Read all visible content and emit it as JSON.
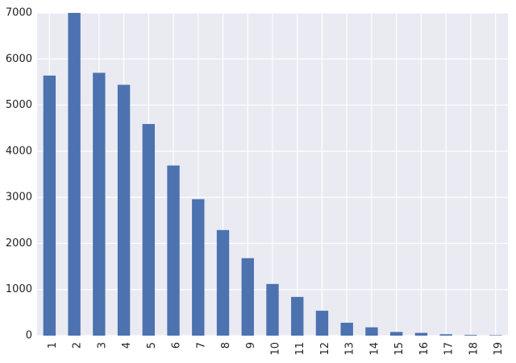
{
  "chart_data": {
    "type": "bar",
    "categories": [
      "1",
      "2",
      "3",
      "4",
      "5",
      "6",
      "7",
      "8",
      "9",
      "10",
      "11",
      "12",
      "13",
      "14",
      "15",
      "16",
      "17",
      "18",
      "19"
    ],
    "values": [
      5640,
      7000,
      5700,
      5440,
      4590,
      3690,
      2960,
      2290,
      1680,
      1120,
      840,
      540,
      280,
      180,
      80,
      60,
      30,
      15,
      10
    ],
    "ylim": [
      0,
      7000
    ],
    "yticks": [
      "0",
      "1000",
      "2000",
      "3000",
      "4000",
      "5000",
      "6000",
      "7000"
    ],
    "grid": true,
    "colors": {
      "bar": "#4c72b0",
      "background": "#eaeaf2",
      "grid": "#ffffff"
    }
  }
}
